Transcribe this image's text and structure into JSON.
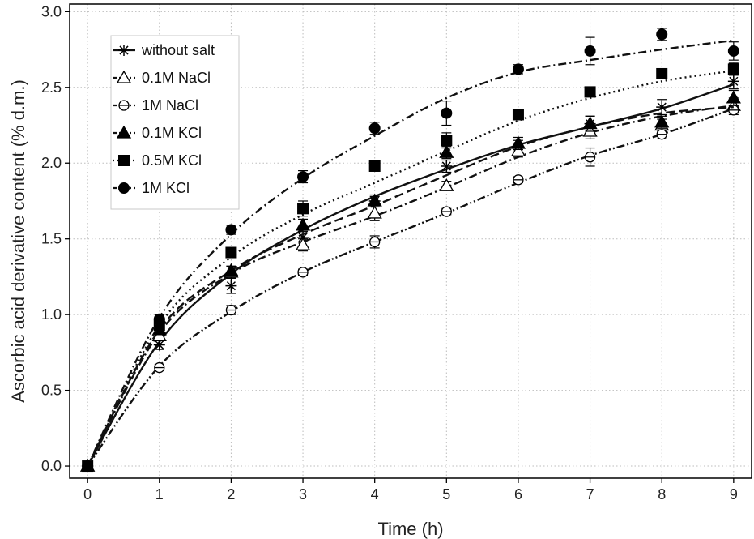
{
  "chart_data": {
    "type": "scatter",
    "title": "",
    "xlabel": "Time (h)",
    "ylabel": "Ascorbic acid derivative content (% d.m.)",
    "xlim": [
      -0.25,
      9.25
    ],
    "ylim": [
      -0.08,
      3.05
    ],
    "xticks": [
      "0",
      "1",
      "2",
      "3",
      "4",
      "5",
      "6",
      "7",
      "8",
      "9"
    ],
    "yticks": [
      "0.0",
      "0.5",
      "1.0",
      "1.5",
      "2.0",
      "2.5",
      "3.0"
    ],
    "grid": true,
    "legend_position": "top-left",
    "x": [
      0,
      1,
      2,
      3,
      4,
      5,
      6,
      7,
      8,
      9
    ],
    "series": [
      {
        "name": "without salt",
        "marker": "star",
        "line": "solid",
        "values": [
          0.0,
          0.8,
          1.19,
          1.51,
          1.75,
          1.98,
          2.11,
          2.26,
          2.37,
          2.54
        ],
        "errors": [
          0.01,
          0.03,
          0.05,
          0.03,
          0.04,
          0.04,
          0.04,
          0.05,
          0.05,
          0.05
        ],
        "fit": [
          0.0,
          0.82,
          1.27,
          1.56,
          1.78,
          1.96,
          2.12,
          2.24,
          2.36,
          2.52
        ]
      },
      {
        "name": "0.1M NaCl",
        "marker": "triangle-open",
        "line": "dashdot",
        "values": [
          0.0,
          0.86,
          1.28,
          1.46,
          1.67,
          1.85,
          2.08,
          2.21,
          2.25,
          2.38
        ],
        "errors": [
          0.01,
          0.03,
          0.04,
          0.04,
          0.05,
          0.03,
          0.04,
          0.05,
          0.04,
          0.05
        ],
        "fit": [
          0.0,
          0.88,
          1.27,
          1.48,
          1.65,
          1.84,
          2.04,
          2.2,
          2.31,
          2.38
        ]
      },
      {
        "name": "1M NaCl",
        "marker": "circle-open",
        "line": "dashdotdot",
        "values": [
          0.0,
          0.65,
          1.03,
          1.28,
          1.48,
          1.68,
          1.89,
          2.04,
          2.19,
          2.35
        ],
        "errors": [
          0.01,
          0.02,
          0.03,
          0.02,
          0.04,
          0.02,
          0.02,
          0.06,
          0.03,
          0.03
        ],
        "fit": [
          0.0,
          0.66,
          1.02,
          1.28,
          1.48,
          1.67,
          1.87,
          2.05,
          2.19,
          2.36
        ]
      },
      {
        "name": "0.1M KCl",
        "marker": "triangle-filled",
        "line": "dashed",
        "values": [
          0.0,
          0.9,
          1.29,
          1.59,
          1.75,
          2.07,
          2.13,
          2.26,
          2.27,
          2.43
        ],
        "errors": [
          0.01,
          0.03,
          0.03,
          0.04,
          0.03,
          0.04,
          0.04,
          0.05,
          0.04,
          0.05
        ],
        "fit": [
          0.0,
          0.9,
          1.29,
          1.53,
          1.72,
          1.92,
          2.11,
          2.24,
          2.33,
          2.37
        ]
      },
      {
        "name": "0.5M KCl",
        "marker": "square-filled",
        "line": "dotted",
        "values": [
          0.0,
          0.93,
          1.41,
          1.7,
          1.98,
          2.15,
          2.32,
          2.47,
          2.59,
          2.62
        ],
        "errors": [
          0.01,
          0.03,
          0.03,
          0.05,
          0.03,
          0.05,
          0.03,
          0.03,
          0.03,
          0.04
        ],
        "fit": [
          0.0,
          0.93,
          1.38,
          1.66,
          1.87,
          2.08,
          2.28,
          2.43,
          2.54,
          2.61
        ]
      },
      {
        "name": "1M KCl",
        "marker": "circle-filled",
        "line": "dashdot",
        "values": [
          0.0,
          0.97,
          1.56,
          1.91,
          2.23,
          2.33,
          2.62,
          2.74,
          2.85,
          2.74
        ],
        "errors": [
          0.01,
          0.03,
          0.03,
          0.04,
          0.04,
          0.08,
          0.03,
          0.09,
          0.04,
          0.06
        ],
        "fit": [
          0.0,
          0.98,
          1.53,
          1.9,
          2.18,
          2.43,
          2.6,
          2.68,
          2.75,
          2.81
        ]
      }
    ]
  }
}
